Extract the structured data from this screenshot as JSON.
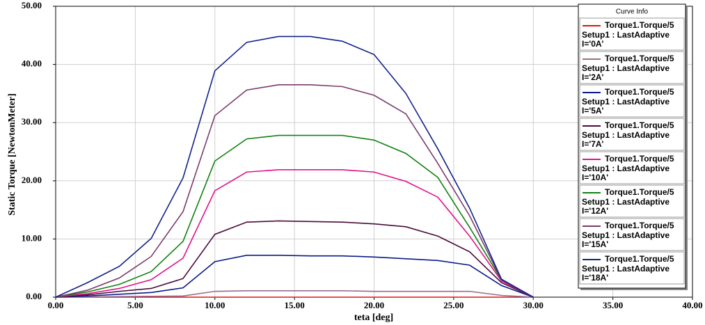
{
  "chart_data": {
    "type": "line",
    "x_label": "teta [deg]",
    "y_label": "Static Torque [NewtonMeter]",
    "legend_title": "Curve Info",
    "legend_position": "upper right",
    "x": [
      0,
      2,
      4,
      6,
      8,
      10,
      12,
      14,
      16,
      18,
      20,
      22,
      24,
      26,
      28,
      30
    ],
    "series": [
      {
        "name": "Torque1.Torque/5",
        "setup": "Setup1 : LastAdaptive",
        "label": "I='0A'",
        "color": "#e01010",
        "values": [
          0,
          0,
          0,
          0,
          0,
          0,
          0,
          0,
          0,
          0,
          0,
          0,
          0,
          0,
          0,
          0
        ]
      },
      {
        "name": "Torque1.Torque/5",
        "setup": "Setup1 : LastAdaptive",
        "label": "I='2A'",
        "color": "#9a6a8a",
        "values": [
          0,
          0.05,
          0.1,
          0.15,
          0.2,
          1.0,
          1.1,
          1.1,
          1.1,
          1.1,
          1.0,
          1.0,
          1.0,
          1.0,
          0.3,
          0
        ]
      },
      {
        "name": "Torque1.Torque/5",
        "setup": "Setup1 : LastAdaptive",
        "label": "I='5A'",
        "color": "#0a1a8a",
        "values": [
          0,
          0.2,
          0.5,
          0.8,
          1.6,
          6.1,
          7.2,
          7.2,
          7.1,
          7.1,
          6.9,
          6.6,
          6.3,
          5.5,
          2.0,
          0
        ]
      },
      {
        "name": "Torque1.Torque/5",
        "setup": "Setup1 : LastAdaptive",
        "label": "I='7A'",
        "color": "#4a0a3a",
        "values": [
          0,
          0.4,
          1.0,
          1.5,
          3.2,
          10.8,
          12.9,
          13.1,
          13.0,
          12.9,
          12.6,
          12.1,
          10.5,
          7.8,
          2.5,
          0
        ]
      },
      {
        "name": "Torque1.Torque/5",
        "setup": "Setup1 : LastAdaptive",
        "label": "I='10A'",
        "color": "#e0108a",
        "values": [
          0,
          0.6,
          1.5,
          3.0,
          6.7,
          18.3,
          21.5,
          21.9,
          21.9,
          21.9,
          21.5,
          19.9,
          17.2,
          10.5,
          2.8,
          0
        ]
      },
      {
        "name": "Torque1.Torque/5",
        "setup": "Setup1 : LastAdaptive",
        "label": "I='12A'",
        "color": "#108010",
        "values": [
          0,
          0.9,
          2.2,
          4.4,
          9.6,
          23.4,
          27.2,
          27.8,
          27.8,
          27.8,
          27.0,
          24.7,
          20.6,
          12.0,
          3.0,
          0
        ]
      },
      {
        "name": "Torque1.Torque/5",
        "setup": "Setup1 : LastAdaptive",
        "label": "I='15A'",
        "color": "#7a3a6a",
        "values": [
          0,
          1.2,
          3.3,
          7.0,
          14.7,
          31.2,
          35.6,
          36.5,
          36.5,
          36.2,
          34.7,
          31.5,
          23.0,
          14.0,
          3.0,
          0
        ]
      },
      {
        "name": "Torque1.Torque/5",
        "setup": "Setup1 : LastAdaptive",
        "label": "I='18A'",
        "color": "#10208a",
        "values": [
          0,
          2.5,
          5.3,
          10.1,
          20.5,
          38.9,
          43.8,
          44.8,
          44.8,
          44.0,
          41.7,
          35.0,
          25.5,
          15.3,
          3.1,
          0
        ]
      }
    ],
    "xlim": [
      0,
      40
    ],
    "xticks": [
      {
        "value": 0,
        "label": "0.00"
      },
      {
        "value": 5,
        "label": "5.00"
      },
      {
        "value": 10,
        "label": "10.00"
      },
      {
        "value": 15,
        "label": "15.00"
      },
      {
        "value": 20,
        "label": "20.00"
      },
      {
        "value": 25,
        "label": "25.00"
      },
      {
        "value": 30,
        "label": "30.00"
      },
      {
        "value": 35,
        "label": "35.00"
      },
      {
        "value": 40,
        "label": "40.00"
      }
    ],
    "ylim": [
      0,
      50
    ],
    "yticks": [
      {
        "value": 0,
        "label": "0.00"
      },
      {
        "value": 10,
        "label": "10.00"
      },
      {
        "value": 20,
        "label": "20.00"
      },
      {
        "value": 30,
        "label": "30.00"
      },
      {
        "value": 40,
        "label": "40.00"
      },
      {
        "value": 50,
        "label": "50.00"
      }
    ],
    "grid": true
  }
}
